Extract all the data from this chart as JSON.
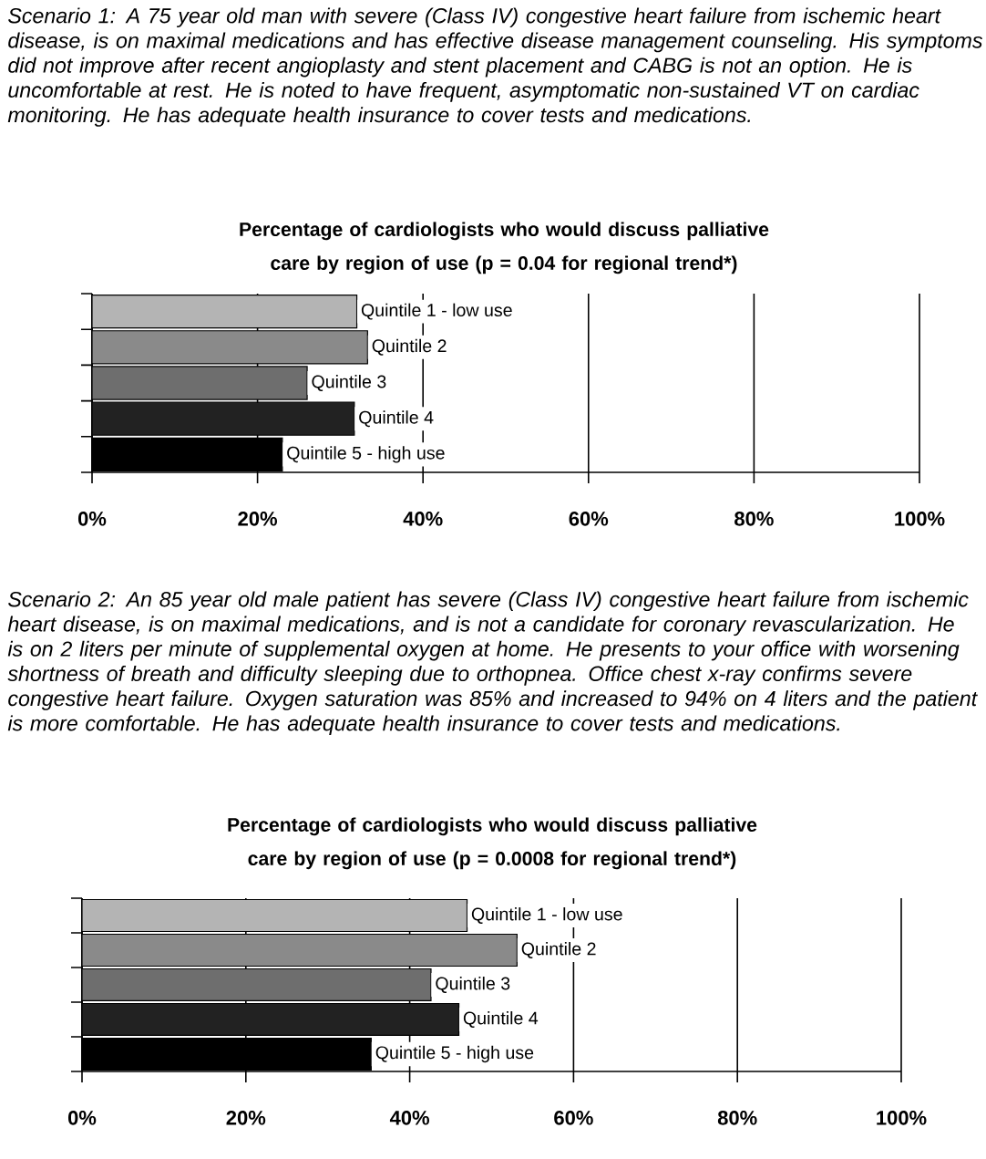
{
  "chart_data": [
    {
      "type": "bar",
      "orientation": "horizontal",
      "annotations": [
        "Scenario 1: A 75 year old man with severe (Class IV) congestive heart failure from ischemic heart disease, is on maximal medications and has effective disease management counseling. His symptoms did not improve after recent angioplasty and stent placement and CABG is not an option. He is uncomfortable at rest. He is noted to have frequent, asymptomatic non-sustained VT on cardiac monitoring. He has adequate health insurance to cover tests and medications."
      ],
      "title": "Percentage of cardiologists who would discuss palliative care by region of use (p = 0.04 for regional trend*)",
      "categories": [
        "Quintile 1 - low use",
        "Quintile 2",
        "Quintile 3",
        "Quintile 4",
        "Quintile 5 - high use"
      ],
      "values": [
        32.0,
        33.3,
        26.0,
        31.7,
        23.0
      ],
      "colors": [
        "#b4b4b4",
        "#8a8a8a",
        "#6e6e6e",
        "#222222",
        "#000000"
      ],
      "xlim": [
        0,
        100
      ],
      "xticks": [
        {
          "value": 0,
          "label": "0%"
        },
        {
          "value": 20,
          "label": "20%"
        },
        {
          "value": 40,
          "label": "40%"
        },
        {
          "value": 60,
          "label": "60%"
        },
        {
          "value": 80,
          "label": "80%"
        },
        {
          "value": 100,
          "label": "100%"
        }
      ],
      "grid": "x"
    },
    {
      "type": "bar",
      "orientation": "horizontal",
      "annotations": [
        "Scenario 2: An 85 year old male patient has severe (Class IV) congestive heart failure from ischemic heart disease, is on maximal medications, and is not a candidate for coronary revascularization. He is on 2 liters per minute of supplemental oxygen at home. He presents to your office with worsening shortness of breath and difficulty sleeping due to orthopnea. Office chest x-ray confirms severe congestive heart failure. Oxygen saturation was 85% and increased to 94% on 4 liters and the patient is more comfortable. He has adequate health insurance to cover tests and medications."
      ],
      "title": "Percentage of cardiologists who would discuss palliative care by region of use (p = 0.0008 for regional trend*)",
      "categories": [
        "Quintile 1 - low use",
        "Quintile 2",
        "Quintile 3",
        "Quintile 4",
        "Quintile 5 - high use"
      ],
      "values": [
        47.0,
        53.1,
        42.6,
        46.0,
        35.3
      ],
      "colors": [
        "#b4b4b4",
        "#8a8a8a",
        "#6e6e6e",
        "#222222",
        "#000000"
      ],
      "xlim": [
        0,
        100
      ],
      "xticks": [
        {
          "value": 0,
          "label": "0%"
        },
        {
          "value": 20,
          "label": "20%"
        },
        {
          "value": 40,
          "label": "40%"
        },
        {
          "value": 60,
          "label": "60%"
        },
        {
          "value": 80,
          "label": "80%"
        },
        {
          "value": 100,
          "label": "100%"
        }
      ],
      "grid": "x"
    }
  ]
}
